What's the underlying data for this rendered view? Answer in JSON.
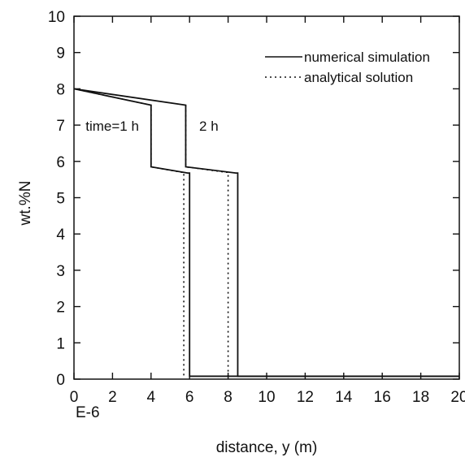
{
  "chart_data": {
    "type": "line",
    "title": "",
    "xlabel": "distance, y (m)",
    "ylabel": "wt.%N",
    "x_scale_label": "E-6",
    "xlim": [
      0,
      20
    ],
    "ylim": [
      0,
      10
    ],
    "xticks": [
      0,
      2,
      4,
      6,
      8,
      10,
      12,
      14,
      16,
      18,
      20
    ],
    "yticks": [
      0,
      1,
      2,
      3,
      4,
      5,
      6,
      7,
      8,
      9,
      10
    ],
    "grid": false,
    "legend_position": "top-right",
    "legend": [
      {
        "label": "numerical simulation",
        "style": "solid"
      },
      {
        "label": "analytical solution",
        "style": "dotted"
      }
    ],
    "annotations": [
      {
        "text": "time=1 h",
        "x": 0.6,
        "y": 6.85
      },
      {
        "text": "2 h",
        "x": 6.5,
        "y": 6.85
      }
    ],
    "series": [
      {
        "style": "solid",
        "x": [
          0,
          4,
          4,
          5.9,
          6.0,
          6.0,
          20
        ],
        "y": [
          8.0,
          7.55,
          5.85,
          5.68,
          5.68,
          0.08,
          0.08
        ]
      },
      {
        "style": "solid",
        "x": [
          0,
          5.8,
          5.8,
          8.4,
          8.5,
          8.5,
          20
        ],
        "y": [
          8.0,
          7.55,
          5.85,
          5.68,
          5.68,
          0.08,
          0.08
        ]
      },
      {
        "style": "dotted",
        "x": [
          0,
          4,
          4,
          5.6,
          5.7,
          5.7
        ],
        "y": [
          8.0,
          7.55,
          5.85,
          5.7,
          5.7,
          0.08
        ]
      },
      {
        "style": "dotted",
        "x": [
          5.8,
          5.8,
          7.9,
          8.0,
          8.0
        ],
        "y": [
          7.55,
          5.85,
          5.7,
          5.7,
          0.08
        ]
      }
    ]
  }
}
